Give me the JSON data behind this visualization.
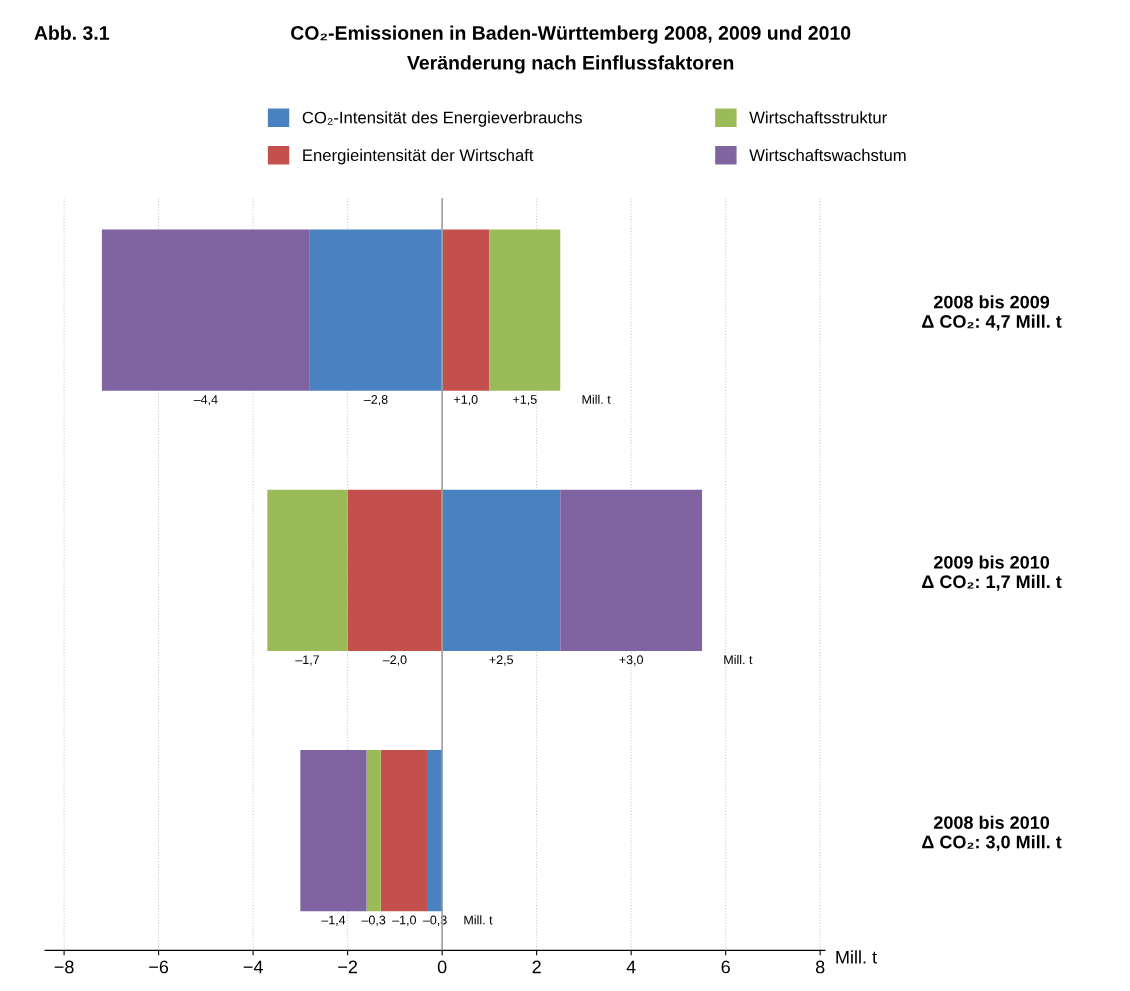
{
  "chart_data": {
    "type": "bar",
    "orientation": "horizontal",
    "stacked": true,
    "title": "CO₂-Emissionen in Baden-Württemberg 2008, 2009 und 2010",
    "subtitle": "Veränderung nach Einflussfaktoren",
    "xlabel": "Mill. t",
    "categories": [
      "2008 bis 2009\nΔ CO₂: 4,7 Mill. t",
      "2009 bis 2010\nΔ CO₂: 1,7 Mill. t",
      "2008 bis 2010\nΔ CO₂: 3,0 Mill. t"
    ],
    "series": [
      {
        "name": "CO₂-Intensität des Energieverbrauchs",
        "color": "#4a81c0",
        "values": [
          -2.8,
          2.5,
          -0.3
        ],
        "value_labels": [
          "–2,8",
          "+2,5",
          "–0,3"
        ]
      },
      {
        "name": "Energieintensität der Wirtschaft",
        "color": "#c4504e",
        "values": [
          1.0,
          -2.0,
          -1.0
        ],
        "value_labels": [
          "+1,0",
          "–2,0",
          "–1,0"
        ]
      },
      {
        "name": "Wirtschaftsstruktur",
        "color": "#9bbb59",
        "values": [
          1.5,
          -1.7,
          -0.3
        ],
        "value_labels": [
          "+1,5",
          "–1,7",
          "–0,3"
        ]
      },
      {
        "name": "Wirtschaftswachstum",
        "color": "#8064a2",
        "values": [
          -4.4,
          3.0,
          -1.4
        ],
        "value_labels": [
          "–4,4",
          "+3,0",
          "–1,4"
        ]
      }
    ],
    "xlim": [
      -8.4,
      8.1
    ],
    "xticks": [
      {
        "value": -8,
        "label": "−8"
      },
      {
        "value": -6,
        "label": "−6"
      },
      {
        "value": -4,
        "label": "−4"
      },
      {
        "value": -2,
        "label": "−2"
      },
      0,
      2,
      4,
      6,
      8
    ],
    "grid": "x",
    "legend": "top",
    "ref_lines": [
      {
        "axis": "x",
        "value": 0,
        "color": "#a0a0a0"
      }
    ],
    "annotations": [
      "Abb. 3.1",
      "Mill. t",
      "Mill. t",
      "Mill. t"
    ]
  }
}
